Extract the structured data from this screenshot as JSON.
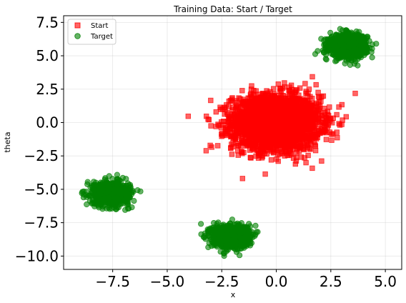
{
  "chart_data": {
    "type": "scatter",
    "title": "Training Data: Start / Target",
    "xlabel": "x",
    "ylabel": "theta",
    "xlim": [
      -9.75,
      5.75
    ],
    "ylim": [
      -11,
      8
    ],
    "xticks": [
      -7.5,
      -5.0,
      -2.5,
      0.0,
      2.5,
      5.0
    ],
    "xtick_labels": [
      "−7.5",
      "−5.0",
      "−2.5",
      "0.0",
      "2.5",
      "5.0"
    ],
    "yticks": [
      7.5,
      5.0,
      2.5,
      0.0,
      -2.5,
      -5.0,
      -7.5,
      -10.0
    ],
    "ytick_labels": [
      "7.5",
      "5.0",
      "2.5",
      "0.0",
      "−2.5",
      "−5.0",
      "−7.5",
      "−10.0"
    ],
    "grid": true,
    "legend_position": "top-left",
    "series": [
      {
        "name": "Start",
        "marker": "square",
        "color": "#ff0000",
        "clusters": [
          {
            "center": [
              0.0,
              0.0
            ],
            "std": [
              1.0,
              1.0
            ],
            "count": 3000
          }
        ]
      },
      {
        "name": "Target",
        "marker": "circle",
        "color": "#008000",
        "clusters": [
          {
            "center": [
              3.3,
              5.75
            ],
            "std": [
              0.42,
              0.42
            ],
            "count": 900
          },
          {
            "center": [
              -7.6,
              -5.3
            ],
            "std": [
              0.42,
              0.42
            ],
            "count": 900
          },
          {
            "center": [
              -2.1,
              -8.5
            ],
            "std": [
              0.42,
              0.42
            ],
            "count": 900
          }
        ]
      }
    ]
  }
}
